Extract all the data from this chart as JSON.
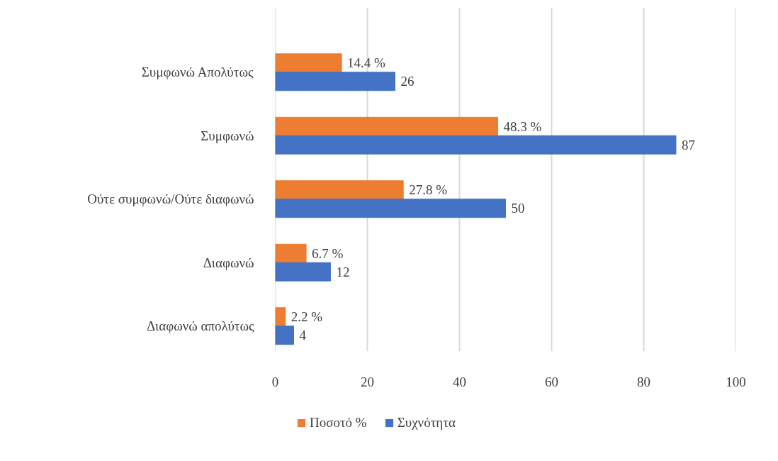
{
  "chart_data": {
    "type": "bar",
    "orientation": "horizontal",
    "categories": [
      "Συμφωνώ Απολύτως",
      "Συμφωνώ",
      "Ούτε συμφωνώ/Ούτε διαφωνώ",
      "Διαφωνώ",
      "Διαφωνώ απολύτως"
    ],
    "series": [
      {
        "name": "Ποσοτό %",
        "color": "#ed7d31",
        "values": [
          14.4,
          48.3,
          27.8,
          6.7,
          2.2
        ],
        "value_labels": [
          "14.4 %",
          "48.3 %",
          "27.8 %",
          "6.7 %",
          "2.2 %"
        ]
      },
      {
        "name": "Συχνότητα",
        "color": "#4472c4",
        "values": [
          26,
          87,
          50,
          12,
          4
        ],
        "value_labels": [
          "26",
          "87",
          "50",
          "12",
          "4"
        ]
      }
    ],
    "xlim": [
      0,
      100
    ],
    "xticks": [
      0,
      20,
      40,
      60,
      80,
      100
    ],
    "grid": "x",
    "legend": "bottom"
  }
}
